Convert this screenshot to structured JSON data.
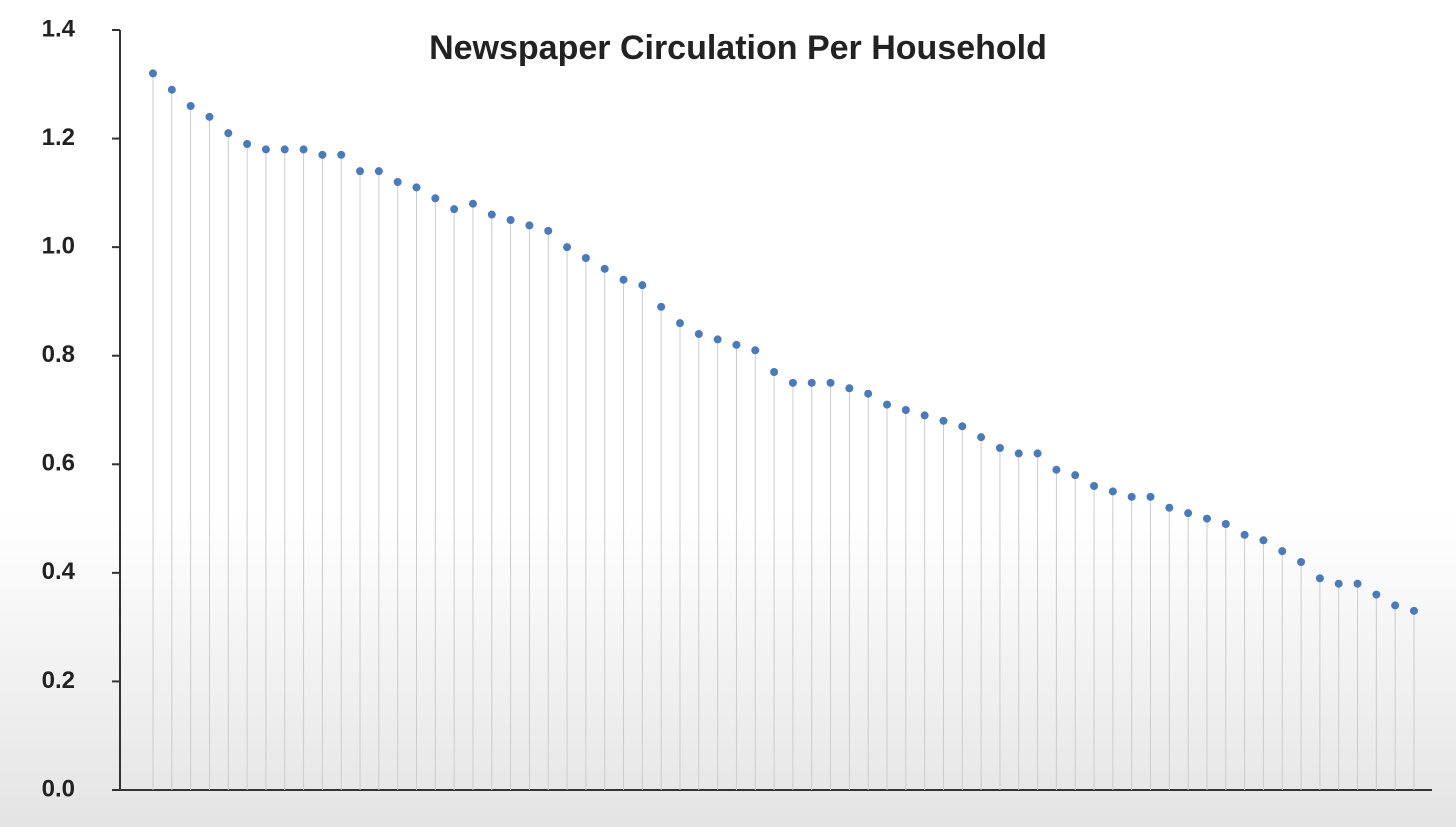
{
  "chart_data": {
    "type": "dot",
    "title": "Newspaper Circulation Per Household",
    "categories": [
      null,
      null,
      null,
      null,
      null,
      null,
      null,
      null,
      null,
      null,
      null,
      null,
      null,
      null,
      null,
      null,
      null,
      null,
      null,
      null,
      null,
      null,
      null,
      null,
      null,
      null,
      null,
      null,
      null,
      null,
      null,
      null,
      null,
      null,
      null,
      null,
      null,
      null,
      null,
      null,
      null,
      null,
      null,
      null,
      null,
      null,
      null,
      null,
      null,
      null,
      null,
      null,
      null,
      null,
      null,
      null,
      null,
      null,
      null,
      null,
      null,
      null,
      null,
      null,
      null,
      null,
      null,
      null
    ],
    "values": [
      1.32,
      1.29,
      1.26,
      1.24,
      1.21,
      1.19,
      1.18,
      1.18,
      1.18,
      1.17,
      1.17,
      1.14,
      1.14,
      1.12,
      1.11,
      1.09,
      1.07,
      1.08,
      1.06,
      1.05,
      1.04,
      1.03,
      1.0,
      0.98,
      0.96,
      0.94,
      0.93,
      0.89,
      0.86,
      0.84,
      0.83,
      0.82,
      0.81,
      0.77,
      0.75,
      0.75,
      0.75,
      0.74,
      0.73,
      0.71,
      0.7,
      0.69,
      0.68,
      0.67,
      0.65,
      0.63,
      0.62,
      0.62,
      0.59,
      0.58,
      0.56,
      0.55,
      0.54,
      0.54,
      0.52,
      0.51,
      0.5,
      0.49,
      0.47,
      0.46,
      0.44,
      0.42,
      0.39,
      0.38,
      0.38,
      0.36,
      0.34,
      0.33
    ],
    "color": "#4a7ab8",
    "ylim": [
      0,
      1.4
    ],
    "yticks": [
      {
        "value": 0,
        "label": "0.0"
      },
      0.2,
      0.4,
      0.6,
      0.8,
      {
        "value": 1,
        "label": "1.0"
      },
      1.2,
      1.4
    ]
  }
}
